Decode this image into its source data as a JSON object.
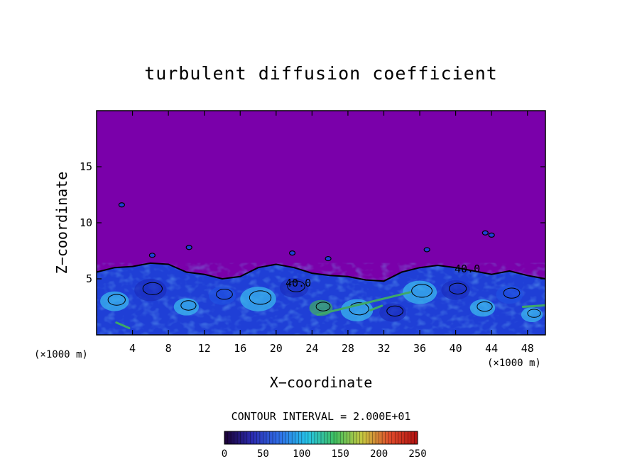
{
  "chart_data": {
    "type": "heatmap",
    "title": "turbulent diffusion coefficient",
    "xlabel": "X−coordinate",
    "ylabel": "Z−coordinate",
    "x_unit_left": "(×1000 m)",
    "x_unit_right": "(×1000 m)",
    "xlim": [
      0,
      50
    ],
    "ylim": [
      0,
      20
    ],
    "x_ticks": [
      4,
      8,
      12,
      16,
      20,
      24,
      28,
      32,
      36,
      40,
      44,
      48
    ],
    "y_ticks": [
      5,
      10,
      15
    ],
    "contour_interval_text": "CONTOUR INTERVAL = 2.000E+01",
    "contour_labels": [
      "40.0",
      "40.0"
    ],
    "colorbar": {
      "min": 0,
      "max": 250,
      "ticks": [
        0,
        50,
        100,
        150,
        200,
        250
      ],
      "colors": [
        "#1a0033",
        "#2b2bb0",
        "#2f6fe8",
        "#25c4e8",
        "#3fbf60",
        "#c8c840",
        "#e04a2a",
        "#b01010"
      ]
    },
    "background_value": 0,
    "colors": {
      "background_field": "#7a00aa",
      "low_value": "#1f3fd6",
      "mid_value": "#39b7ee",
      "high_value": "#3ea868"
    },
    "boundary_layer_top_km": [
      [
        0,
        5.6
      ],
      [
        2,
        6.0
      ],
      [
        4,
        6.1
      ],
      [
        6,
        6.4
      ],
      [
        8,
        6.3
      ],
      [
        10,
        5.6
      ],
      [
        12,
        5.4
      ],
      [
        14,
        5.0
      ],
      [
        16,
        5.2
      ],
      [
        18,
        6.0
      ],
      [
        20,
        6.3
      ],
      [
        22,
        6.0
      ],
      [
        24,
        5.5
      ],
      [
        26,
        5.3
      ],
      [
        28,
        5.2
      ],
      [
        30,
        4.9
      ],
      [
        32,
        4.8
      ],
      [
        34,
        5.6
      ],
      [
        36,
        6.0
      ],
      [
        38,
        6.2
      ],
      [
        40,
        6.0
      ],
      [
        42,
        5.7
      ],
      [
        44,
        5.4
      ],
      [
        46,
        5.7
      ],
      [
        48,
        5.3
      ],
      [
        50,
        5.0
      ]
    ]
  }
}
